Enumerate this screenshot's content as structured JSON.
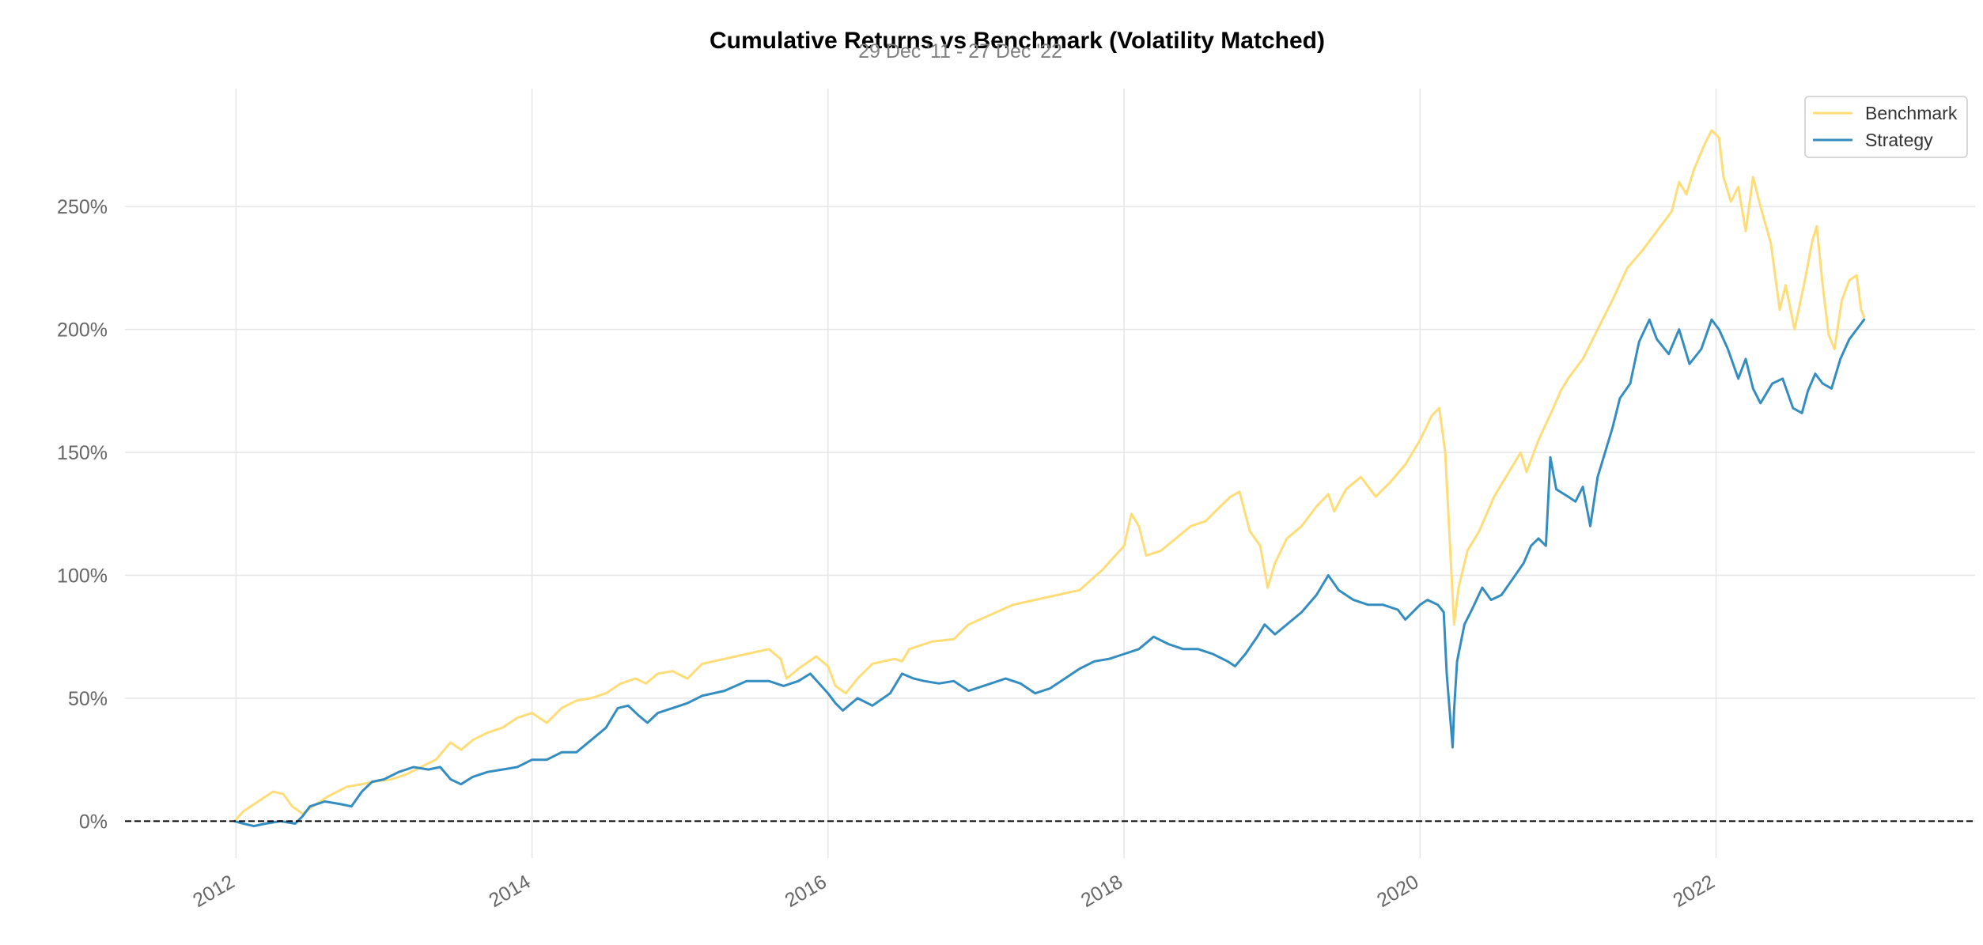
{
  "chart_data": {
    "type": "line",
    "title": "Cumulative Returns vs Benchmark (Volatility Matched)",
    "subtitle": "29 Dec '11 - 27 Dec '22",
    "xlabel": "",
    "ylabel": "",
    "x_range": [
      2011.25,
      2023.75
    ],
    "ylim": [
      -15,
      298
    ],
    "x_ticks": [
      2012,
      2014,
      2016,
      2018,
      2020,
      2022
    ],
    "x_tick_labels": [
      "2012",
      "2014",
      "2016",
      "2018",
      "2020",
      "2022"
    ],
    "y_ticks": [
      0,
      50,
      100,
      150,
      200,
      250
    ],
    "y_tick_labels": [
      "0%",
      "50%",
      "100%",
      "150%",
      "200%",
      "250%"
    ],
    "grid": true,
    "baseline": 0,
    "legend": {
      "position": "top-right",
      "entries": [
        "Benchmark",
        "Strategy"
      ]
    },
    "series": [
      {
        "name": "Benchmark",
        "color": "#fedd78",
        "points": [
          [
            2011.99,
            0
          ],
          [
            2012.05,
            4
          ],
          [
            2012.15,
            8
          ],
          [
            2012.25,
            12
          ],
          [
            2012.32,
            11
          ],
          [
            2012.38,
            6
          ],
          [
            2012.45,
            3
          ],
          [
            2012.52,
            6
          ],
          [
            2012.62,
            10
          ],
          [
            2012.75,
            14
          ],
          [
            2012.85,
            15
          ],
          [
            2012.93,
            16
          ],
          [
            2013.05,
            17
          ],
          [
            2013.15,
            19
          ],
          [
            2013.25,
            22
          ],
          [
            2013.35,
            25
          ],
          [
            2013.45,
            32
          ],
          [
            2013.52,
            29
          ],
          [
            2013.6,
            33
          ],
          [
            2013.7,
            36
          ],
          [
            2013.8,
            38
          ],
          [
            2013.9,
            42
          ],
          [
            2014.0,
            44
          ],
          [
            2014.1,
            40
          ],
          [
            2014.2,
            46
          ],
          [
            2014.3,
            49
          ],
          [
            2014.4,
            50
          ],
          [
            2014.5,
            52
          ],
          [
            2014.6,
            56
          ],
          [
            2014.7,
            58
          ],
          [
            2014.77,
            56
          ],
          [
            2014.85,
            60
          ],
          [
            2014.95,
            61
          ],
          [
            2015.05,
            58
          ],
          [
            2015.15,
            64
          ],
          [
            2015.3,
            66
          ],
          [
            2015.45,
            68
          ],
          [
            2015.6,
            70
          ],
          [
            2015.68,
            66
          ],
          [
            2015.72,
            58
          ],
          [
            2015.8,
            62
          ],
          [
            2015.92,
            67
          ],
          [
            2016.0,
            63
          ],
          [
            2016.05,
            55
          ],
          [
            2016.12,
            52
          ],
          [
            2016.2,
            58
          ],
          [
            2016.3,
            64
          ],
          [
            2016.45,
            66
          ],
          [
            2016.5,
            65
          ],
          [
            2016.55,
            70
          ],
          [
            2016.7,
            73
          ],
          [
            2016.85,
            74
          ],
          [
            2016.95,
            80
          ],
          [
            2017.1,
            84
          ],
          [
            2017.25,
            88
          ],
          [
            2017.4,
            90
          ],
          [
            2017.55,
            92
          ],
          [
            2017.7,
            94
          ],
          [
            2017.85,
            102
          ],
          [
            2018.0,
            112
          ],
          [
            2018.05,
            125
          ],
          [
            2018.1,
            120
          ],
          [
            2018.15,
            108
          ],
          [
            2018.25,
            110
          ],
          [
            2018.35,
            115
          ],
          [
            2018.45,
            120
          ],
          [
            2018.55,
            122
          ],
          [
            2018.65,
            128
          ],
          [
            2018.72,
            132
          ],
          [
            2018.78,
            134
          ],
          [
            2018.85,
            118
          ],
          [
            2018.92,
            112
          ],
          [
            2018.97,
            95
          ],
          [
            2019.02,
            105
          ],
          [
            2019.1,
            115
          ],
          [
            2019.2,
            120
          ],
          [
            2019.3,
            128
          ],
          [
            2019.38,
            133
          ],
          [
            2019.42,
            126
          ],
          [
            2019.5,
            135
          ],
          [
            2019.6,
            140
          ],
          [
            2019.7,
            132
          ],
          [
            2019.8,
            138
          ],
          [
            2019.9,
            145
          ],
          [
            2020.0,
            155
          ],
          [
            2020.08,
            165
          ],
          [
            2020.13,
            168
          ],
          [
            2020.17,
            150
          ],
          [
            2020.2,
            115
          ],
          [
            2020.23,
            80
          ],
          [
            2020.26,
            95
          ],
          [
            2020.32,
            110
          ],
          [
            2020.4,
            118
          ],
          [
            2020.5,
            132
          ],
          [
            2020.6,
            142
          ],
          [
            2020.68,
            150
          ],
          [
            2020.72,
            142
          ],
          [
            2020.8,
            155
          ],
          [
            2020.9,
            168
          ],
          [
            2020.95,
            175
          ],
          [
            2021.0,
            180
          ],
          [
            2021.1,
            188
          ],
          [
            2021.2,
            200
          ],
          [
            2021.3,
            212
          ],
          [
            2021.4,
            225
          ],
          [
            2021.5,
            232
          ],
          [
            2021.6,
            240
          ],
          [
            2021.7,
            248
          ],
          [
            2021.75,
            260
          ],
          [
            2021.8,
            255
          ],
          [
            2021.85,
            265
          ],
          [
            2021.92,
            275
          ],
          [
            2021.97,
            281
          ],
          [
            2022.02,
            278
          ],
          [
            2022.05,
            262
          ],
          [
            2022.1,
            252
          ],
          [
            2022.15,
            258
          ],
          [
            2022.2,
            240
          ],
          [
            2022.25,
            262
          ],
          [
            2022.3,
            250
          ],
          [
            2022.37,
            235
          ],
          [
            2022.43,
            208
          ],
          [
            2022.47,
            218
          ],
          [
            2022.53,
            200
          ],
          [
            2022.6,
            220
          ],
          [
            2022.65,
            236
          ],
          [
            2022.68,
            242
          ],
          [
            2022.72,
            218
          ],
          [
            2022.76,
            198
          ],
          [
            2022.8,
            192
          ],
          [
            2022.85,
            212
          ],
          [
            2022.9,
            220
          ],
          [
            2022.95,
            222
          ],
          [
            2022.98,
            208
          ],
          [
            2023.0,
            205
          ]
        ]
      },
      {
        "name": "Strategy",
        "color": "#348dc1",
        "points": [
          [
            2011.99,
            0
          ],
          [
            2012.05,
            -1
          ],
          [
            2012.12,
            -2
          ],
          [
            2012.2,
            -1
          ],
          [
            2012.3,
            0
          ],
          [
            2012.4,
            -1
          ],
          [
            2012.45,
            2
          ],
          [
            2012.5,
            6
          ],
          [
            2012.6,
            8
          ],
          [
            2012.7,
            7
          ],
          [
            2012.78,
            6
          ],
          [
            2012.85,
            12
          ],
          [
            2012.92,
            16
          ],
          [
            2013.0,
            17
          ],
          [
            2013.1,
            20
          ],
          [
            2013.2,
            22
          ],
          [
            2013.3,
            21
          ],
          [
            2013.38,
            22
          ],
          [
            2013.45,
            17
          ],
          [
            2013.52,
            15
          ],
          [
            2013.6,
            18
          ],
          [
            2013.7,
            20
          ],
          [
            2013.8,
            21
          ],
          [
            2013.9,
            22
          ],
          [
            2014.0,
            25
          ],
          [
            2014.1,
            25
          ],
          [
            2014.2,
            28
          ],
          [
            2014.3,
            28
          ],
          [
            2014.4,
            33
          ],
          [
            2014.5,
            38
          ],
          [
            2014.58,
            46
          ],
          [
            2014.65,
            47
          ],
          [
            2014.72,
            43
          ],
          [
            2014.78,
            40
          ],
          [
            2014.85,
            44
          ],
          [
            2014.95,
            46
          ],
          [
            2015.05,
            48
          ],
          [
            2015.15,
            51
          ],
          [
            2015.3,
            53
          ],
          [
            2015.45,
            57
          ],
          [
            2015.6,
            57
          ],
          [
            2015.7,
            55
          ],
          [
            2015.8,
            57
          ],
          [
            2015.88,
            60
          ],
          [
            2016.0,
            52
          ],
          [
            2016.05,
            48
          ],
          [
            2016.1,
            45
          ],
          [
            2016.2,
            50
          ],
          [
            2016.3,
            47
          ],
          [
            2016.42,
            52
          ],
          [
            2016.5,
            60
          ],
          [
            2016.58,
            58
          ],
          [
            2016.65,
            57
          ],
          [
            2016.75,
            56
          ],
          [
            2016.85,
            57
          ],
          [
            2016.95,
            53
          ],
          [
            2017.05,
            55
          ],
          [
            2017.2,
            58
          ],
          [
            2017.3,
            56
          ],
          [
            2017.4,
            52
          ],
          [
            2017.5,
            54
          ],
          [
            2017.6,
            58
          ],
          [
            2017.7,
            62
          ],
          [
            2017.8,
            65
          ],
          [
            2017.9,
            66
          ],
          [
            2018.0,
            68
          ],
          [
            2018.1,
            70
          ],
          [
            2018.2,
            75
          ],
          [
            2018.3,
            72
          ],
          [
            2018.4,
            70
          ],
          [
            2018.5,
            70
          ],
          [
            2018.6,
            68
          ],
          [
            2018.7,
            65
          ],
          [
            2018.75,
            63
          ],
          [
            2018.82,
            68
          ],
          [
            2018.9,
            75
          ],
          [
            2018.95,
            80
          ],
          [
            2019.02,
            76
          ],
          [
            2019.1,
            80
          ],
          [
            2019.2,
            85
          ],
          [
            2019.3,
            92
          ],
          [
            2019.38,
            100
          ],
          [
            2019.45,
            94
          ],
          [
            2019.55,
            90
          ],
          [
            2019.65,
            88
          ],
          [
            2019.75,
            88
          ],
          [
            2019.85,
            86
          ],
          [
            2019.9,
            82
          ],
          [
            2020.0,
            88
          ],
          [
            2020.05,
            90
          ],
          [
            2020.12,
            88
          ],
          [
            2020.16,
            85
          ],
          [
            2020.18,
            60
          ],
          [
            2020.2,
            45
          ],
          [
            2020.22,
            30
          ],
          [
            2020.23,
            45
          ],
          [
            2020.25,
            65
          ],
          [
            2020.3,
            80
          ],
          [
            2020.35,
            86
          ],
          [
            2020.42,
            95
          ],
          [
            2020.48,
            90
          ],
          [
            2020.55,
            92
          ],
          [
            2020.62,
            98
          ],
          [
            2020.7,
            105
          ],
          [
            2020.75,
            112
          ],
          [
            2020.8,
            115
          ],
          [
            2020.85,
            112
          ],
          [
            2020.88,
            148
          ],
          [
            2020.92,
            135
          ],
          [
            2021.0,
            132
          ],
          [
            2021.05,
            130
          ],
          [
            2021.1,
            136
          ],
          [
            2021.15,
            120
          ],
          [
            2021.2,
            140
          ],
          [
            2021.3,
            160
          ],
          [
            2021.35,
            172
          ],
          [
            2021.42,
            178
          ],
          [
            2021.48,
            195
          ],
          [
            2021.55,
            204
          ],
          [
            2021.6,
            196
          ],
          [
            2021.68,
            190
          ],
          [
            2021.75,
            200
          ],
          [
            2021.82,
            186
          ],
          [
            2021.9,
            192
          ],
          [
            2021.97,
            204
          ],
          [
            2022.02,
            200
          ],
          [
            2022.08,
            192
          ],
          [
            2022.15,
            180
          ],
          [
            2022.2,
            188
          ],
          [
            2022.25,
            176
          ],
          [
            2022.3,
            170
          ],
          [
            2022.38,
            178
          ],
          [
            2022.45,
            180
          ],
          [
            2022.52,
            168
          ],
          [
            2022.58,
            166
          ],
          [
            2022.62,
            175
          ],
          [
            2022.67,
            182
          ],
          [
            2022.72,
            178
          ],
          [
            2022.78,
            176
          ],
          [
            2022.84,
            188
          ],
          [
            2022.9,
            196
          ],
          [
            2022.95,
            200
          ],
          [
            2023.0,
            204
          ]
        ]
      }
    ]
  }
}
